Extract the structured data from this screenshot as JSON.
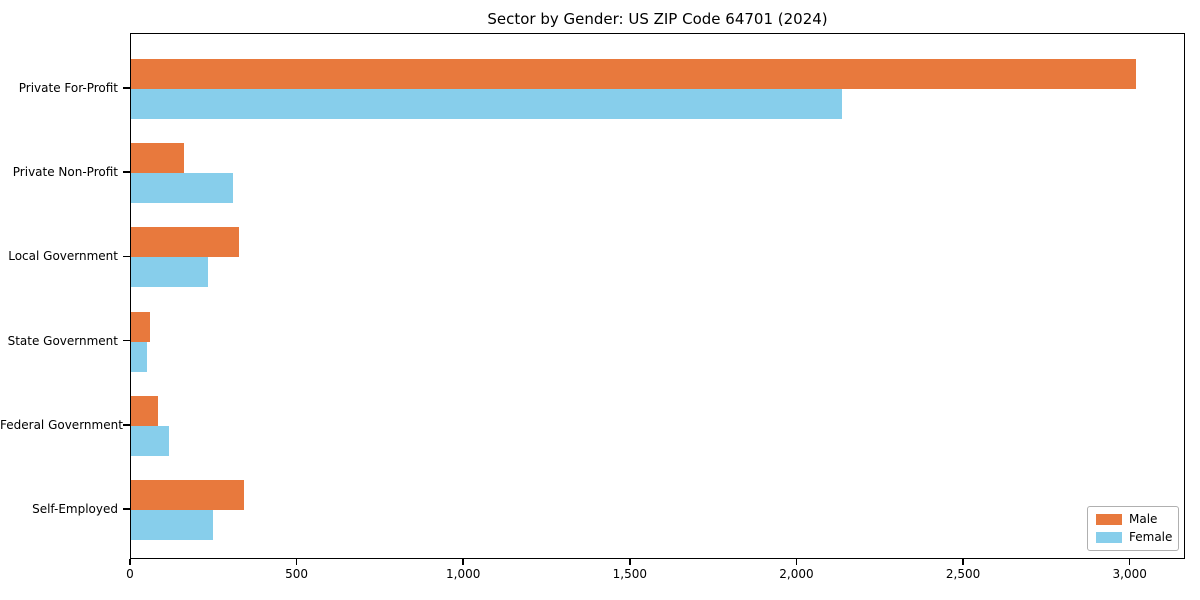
{
  "title": "Sector by Gender: US ZIP Code 64701 (2024)",
  "colors": {
    "male": "#e8793d",
    "female": "#87ceeb",
    "axis": "#000000",
    "background": "#ffffff",
    "legend_border": "#b0b0b0"
  },
  "chart_data": {
    "type": "bar",
    "orientation": "horizontal",
    "title": "Sector by Gender: US ZIP Code 64701 (2024)",
    "xlabel": "",
    "ylabel": "",
    "categories": [
      "Private For-Profit",
      "Private Non-Profit",
      "Local Government",
      "State Government",
      "Federal Government",
      "Self-Employed"
    ],
    "series": [
      {
        "name": "Male",
        "color": "#e8793d",
        "values": [
          3015,
          158,
          325,
          58,
          80,
          338
        ]
      },
      {
        "name": "Female",
        "color": "#87ceeb",
        "values": [
          2135,
          305,
          230,
          48,
          114,
          245
        ]
      }
    ],
    "xlim": [
      0,
      3166
    ],
    "xticks": [
      0,
      500,
      1000,
      1500,
      2000,
      2500,
      3000
    ],
    "xtick_labels": [
      "0",
      "500",
      "1,000",
      "1,500",
      "2,000",
      "2,500",
      "3,000"
    ],
    "grid": false,
    "legend": {
      "position": "lower right",
      "entries": [
        "Male",
        "Female"
      ]
    }
  }
}
